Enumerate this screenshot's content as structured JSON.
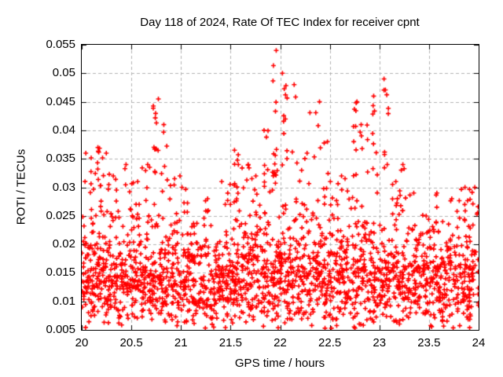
{
  "title": "Day 118 of 2024, Rate Of TEC Index for receiver cpnt",
  "colors": {
    "marker": "#ff0000",
    "grid": "#b2b2b2",
    "axis": "#000000",
    "text": "#000000",
    "background": "#ffffff"
  },
  "chart_data": {
    "type": "scatter",
    "title": "Day 118 of 2024, Rate Of TEC Index for receiver cpnt",
    "xlabel": "GPS time / hours",
    "ylabel": "ROTI / TECUs",
    "xlim": [
      20,
      24
    ],
    "ylim": [
      0.005,
      0.055
    ],
    "xticks": [
      [
        20,
        "20"
      ],
      [
        20.5,
        "20.5"
      ],
      [
        21,
        "21"
      ],
      [
        21.5,
        "21.5"
      ],
      [
        22,
        "22"
      ],
      [
        22.5,
        "22.5"
      ],
      [
        23,
        "23"
      ],
      [
        23.5,
        "23.5"
      ],
      [
        24,
        "24"
      ]
    ],
    "yticks": [
      [
        0.005,
        "0.005"
      ],
      [
        0.01,
        "0.01"
      ],
      [
        0.015,
        "0.015"
      ],
      [
        0.02,
        "0.02"
      ],
      [
        0.025,
        "0.025"
      ],
      [
        0.03,
        "0.03"
      ],
      [
        0.035,
        "0.035"
      ],
      [
        0.04,
        "0.04"
      ],
      [
        0.045,
        "0.045"
      ],
      [
        0.05,
        "0.05"
      ],
      [
        0.055,
        "0.055"
      ]
    ],
    "grid": true,
    "legend": "none",
    "series_name": "ROTI",
    "marker": {
      "shape": "plus",
      "color": "#ff0000",
      "size": 7
    },
    "max_point": {
      "t": 21.96,
      "y": 0.054
    },
    "y_core_distribution": {
      "median": 0.0145,
      "log_sigma": 0.33,
      "min": 0.0052
    },
    "bin_width_hours": 0.1,
    "density_bins_format": [
      "t_start",
      "count",
      "y_cap",
      "spike_count",
      "spike_lo",
      "spike_hi"
    ],
    "density_bins": [
      [
        20.0,
        55,
        0.03,
        6,
        0.029,
        0.036
      ],
      [
        20.1,
        58,
        0.03,
        10,
        0.03,
        0.037
      ],
      [
        20.2,
        55,
        0.03,
        6,
        0.029,
        0.036
      ],
      [
        20.3,
        50,
        0.028,
        3,
        0.027,
        0.032
      ],
      [
        20.4,
        52,
        0.029,
        4,
        0.028,
        0.034
      ],
      [
        20.5,
        55,
        0.03,
        3,
        0.028,
        0.031
      ],
      [
        20.6,
        55,
        0.03,
        5,
        0.029,
        0.034
      ],
      [
        20.7,
        52,
        0.03,
        14,
        0.032,
        0.0455
      ],
      [
        20.8,
        50,
        0.03,
        7,
        0.03,
        0.041
      ],
      [
        20.9,
        55,
        0.029,
        3,
        0.028,
        0.032
      ],
      [
        21.0,
        52,
        0.028,
        2,
        0.027,
        0.03
      ],
      [
        21.1,
        50,
        0.026,
        0,
        0,
        0
      ],
      [
        21.2,
        48,
        0.026,
        2,
        0.025,
        0.028
      ],
      [
        21.3,
        50,
        0.026,
        0,
        0,
        0
      ],
      [
        21.4,
        52,
        0.028,
        4,
        0.027,
        0.031
      ],
      [
        21.5,
        55,
        0.029,
        8,
        0.03,
        0.0365
      ],
      [
        21.6,
        55,
        0.03,
        5,
        0.029,
        0.034
      ],
      [
        21.7,
        52,
        0.029,
        4,
        0.028,
        0.032
      ],
      [
        21.8,
        52,
        0.03,
        8,
        0.03,
        0.04
      ],
      [
        21.9,
        55,
        0.031,
        16,
        0.032,
        0.054
      ],
      [
        22.0,
        55,
        0.031,
        12,
        0.032,
        0.05
      ],
      [
        22.1,
        52,
        0.03,
        5,
        0.03,
        0.048
      ],
      [
        22.2,
        50,
        0.029,
        4,
        0.028,
        0.036
      ],
      [
        22.3,
        52,
        0.03,
        5,
        0.029,
        0.045
      ],
      [
        22.4,
        52,
        0.03,
        5,
        0.029,
        0.038
      ],
      [
        22.5,
        52,
        0.029,
        3,
        0.028,
        0.031
      ],
      [
        22.6,
        52,
        0.029,
        4,
        0.028,
        0.032
      ],
      [
        22.7,
        50,
        0.03,
        10,
        0.032,
        0.045
      ],
      [
        22.8,
        50,
        0.03,
        7,
        0.03,
        0.041
      ],
      [
        22.9,
        52,
        0.03,
        9,
        0.032,
        0.046
      ],
      [
        23.0,
        52,
        0.03,
        10,
        0.033,
        0.049
      ],
      [
        23.1,
        50,
        0.028,
        3,
        0.027,
        0.031
      ],
      [
        23.2,
        50,
        0.028,
        6,
        0.028,
        0.034
      ],
      [
        23.3,
        50,
        0.027,
        2,
        0.026,
        0.029
      ],
      [
        23.4,
        50,
        0.026,
        0,
        0,
        0
      ],
      [
        23.5,
        52,
        0.027,
        2,
        0.026,
        0.029
      ],
      [
        23.6,
        50,
        0.027,
        0,
        0,
        0
      ],
      [
        23.7,
        48,
        0.026,
        2,
        0.025,
        0.028
      ],
      [
        23.8,
        50,
        0.028,
        3,
        0.027,
        0.03
      ],
      [
        23.9,
        52,
        0.028,
        4,
        0.027,
        0.03
      ]
    ]
  }
}
